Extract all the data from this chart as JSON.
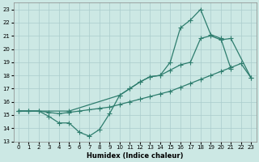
{
  "xlabel": "Humidex (Indice chaleur)",
  "bg_color": "#cce8e4",
  "grid_color": "#aacccc",
  "line_color": "#2e7d6e",
  "xlim": [
    -0.5,
    23.5
  ],
  "ylim": [
    13,
    23.5
  ],
  "xticks": [
    0,
    1,
    2,
    3,
    4,
    5,
    6,
    7,
    8,
    9,
    10,
    11,
    12,
    13,
    14,
    15,
    16,
    17,
    18,
    19,
    20,
    21,
    22,
    23
  ],
  "yticks": [
    13,
    14,
    15,
    16,
    17,
    18,
    19,
    20,
    21,
    22,
    23
  ],
  "line1_x": [
    0,
    1,
    2,
    3,
    4,
    5,
    6,
    7,
    8,
    9,
    10,
    11,
    12,
    13,
    14,
    15,
    16,
    17,
    18,
    19,
    20,
    21
  ],
  "line1_y": [
    15.3,
    15.3,
    15.3,
    14.9,
    14.4,
    14.4,
    13.7,
    13.4,
    13.9,
    15.1,
    16.5,
    17.0,
    17.5,
    17.9,
    18.0,
    19.0,
    21.6,
    22.2,
    23.0,
    21.1,
    20.8,
    18.5
  ],
  "line2_x": [
    0,
    1,
    2,
    3,
    4,
    5,
    6,
    7,
    8,
    9,
    10,
    11,
    12,
    13,
    14,
    15,
    16,
    17,
    18,
    19,
    20,
    21,
    22,
    23
  ],
  "line2_y": [
    15.3,
    15.3,
    15.3,
    15.2,
    15.1,
    15.2,
    15.3,
    15.4,
    15.5,
    15.6,
    15.8,
    16.0,
    16.2,
    16.4,
    16.6,
    16.8,
    17.1,
    17.4,
    17.7,
    18.0,
    18.3,
    18.6,
    18.9,
    17.8
  ],
  "line3_x": [
    0,
    5,
    10,
    11,
    12,
    13,
    14,
    15,
    16,
    17,
    18,
    19,
    20,
    21,
    23
  ],
  "line3_y": [
    15.3,
    15.3,
    16.5,
    17.0,
    17.5,
    17.9,
    18.0,
    18.4,
    18.8,
    19.0,
    20.8,
    21.0,
    20.7,
    20.8,
    17.8
  ]
}
